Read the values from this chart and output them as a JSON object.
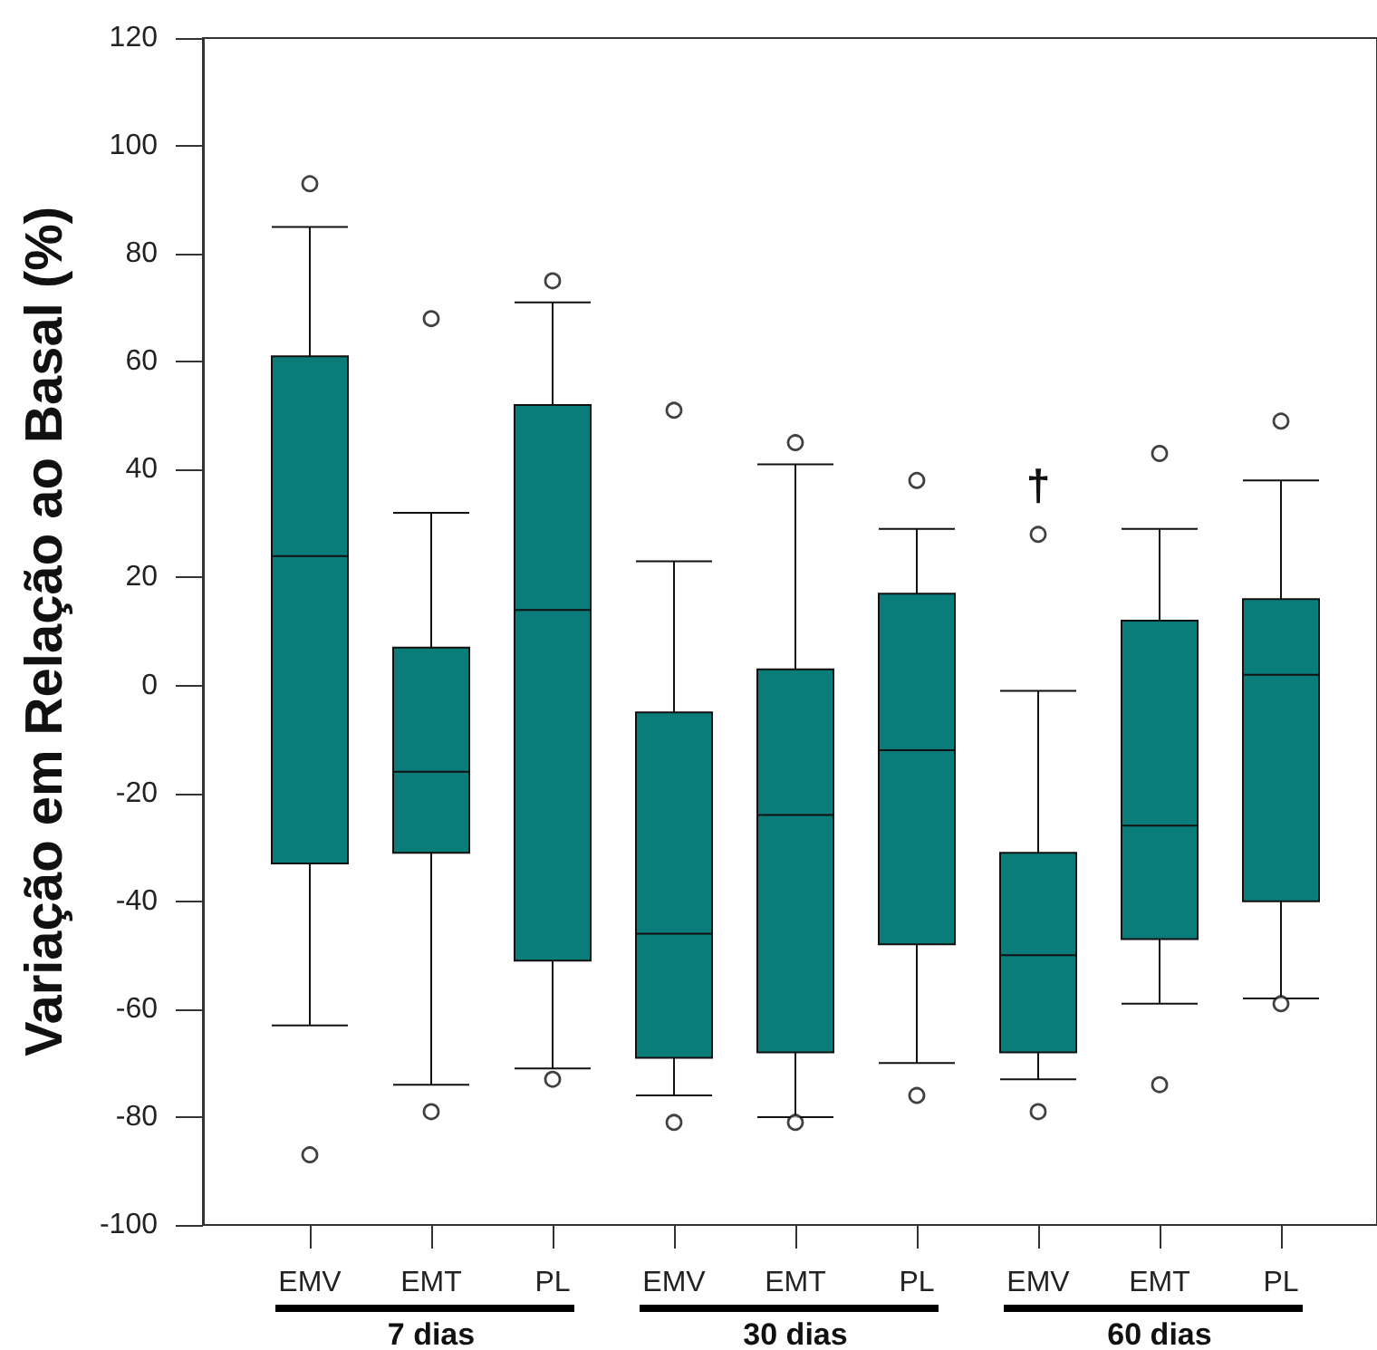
{
  "chart_data": {
    "type": "box",
    "ylabel": "Variação em Relação ao Basal (%)",
    "categories": [
      "EMV",
      "EMT",
      "PL",
      "EMV",
      "EMT",
      "PL",
      "EMV",
      "EMT",
      "PL"
    ],
    "boxes": [
      {
        "low": -63,
        "q1": -33,
        "median": 24,
        "q3": 61,
        "high": 85,
        "outliers": [
          93,
          -87
        ]
      },
      {
        "low": -74,
        "q1": -31,
        "median": -16,
        "q3": 7,
        "high": 32,
        "outliers": [
          68,
          -79
        ]
      },
      {
        "low": -71,
        "q1": -51,
        "median": 14,
        "q3": 52,
        "high": 71,
        "outliers": [
          75,
          -73
        ]
      },
      {
        "low": -76,
        "q1": -69,
        "median": -46,
        "q3": -5,
        "high": 23,
        "outliers": [
          51,
          -81
        ]
      },
      {
        "low": -80,
        "q1": -68,
        "median": -24,
        "q3": 3,
        "high": 41,
        "outliers": [
          45,
          -81
        ]
      },
      {
        "low": -70,
        "q1": -48,
        "median": -12,
        "q3": 17,
        "high": 29,
        "outliers": [
          38,
          -76
        ]
      },
      {
        "low": -73,
        "q1": -68,
        "median": -50,
        "q3": -31,
        "high": -1,
        "outliers": [
          28,
          -79
        ]
      },
      {
        "low": -59,
        "q1": -47,
        "median": -26,
        "q3": 12,
        "high": 29,
        "outliers": [
          43,
          -74
        ]
      },
      {
        "low": -58,
        "q1": -40,
        "median": 2,
        "q3": 16,
        "high": 38,
        "outliers": [
          49,
          -59
        ]
      }
    ],
    "color": "#0a7d7a",
    "ylim": [
      -100,
      120
    ],
    "yticks": [
      -100,
      -80,
      -60,
      -40,
      -20,
      0,
      20,
      40,
      60,
      80,
      100,
      120
    ],
    "annotations": [
      "†",
      "7 dias",
      "30 dias",
      "60 dias"
    ]
  }
}
